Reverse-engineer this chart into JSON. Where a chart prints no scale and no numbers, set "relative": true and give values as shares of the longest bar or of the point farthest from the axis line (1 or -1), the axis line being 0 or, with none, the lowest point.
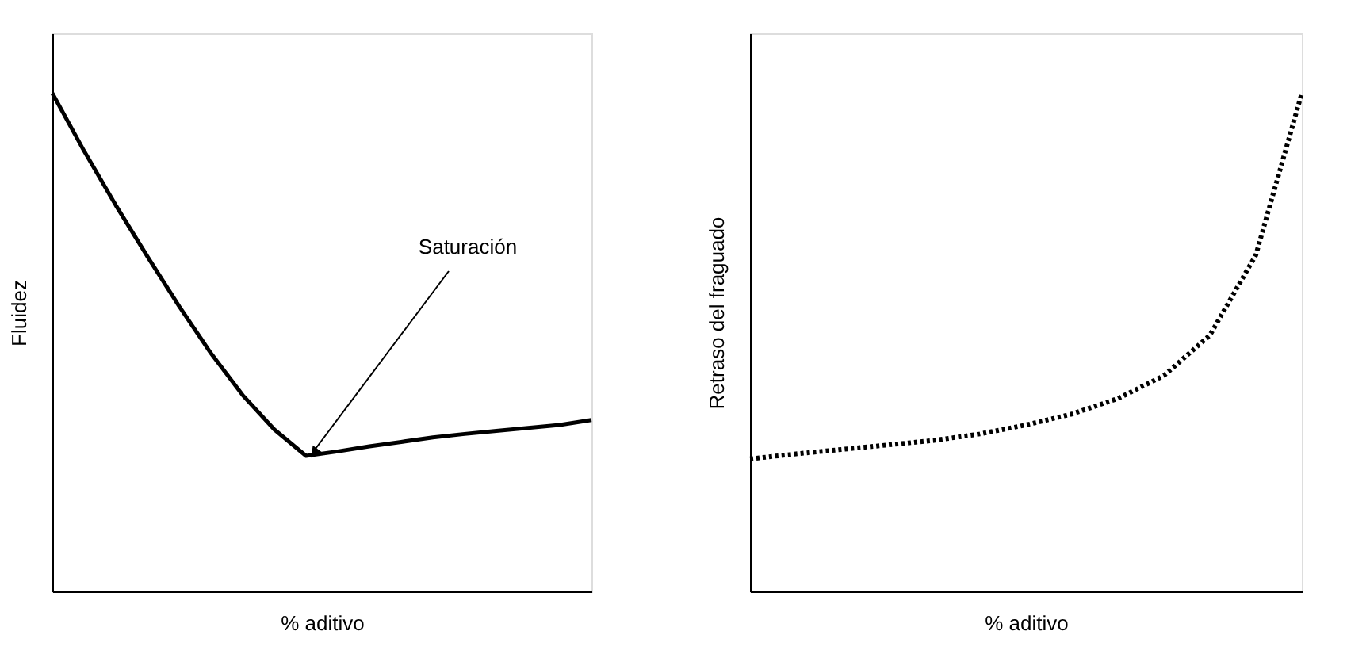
{
  "chart_data": [
    {
      "type": "line",
      "relative": true,
      "xlabel": "% aditivo",
      "ylabel": "Fluidez",
      "categories": [
        null,
        null,
        null,
        null,
        null,
        null,
        null,
        null,
        null,
        null,
        null,
        null,
        null,
        null,
        null,
        null,
        null,
        null
      ],
      "series": [
        {
          "color": "#000000",
          "line_style": "solid",
          "values": [
            1,
            0.884,
            0.775,
            0.672,
            0.572,
            0.478,
            0.394,
            0.325,
            0.272,
            0.281,
            0.291,
            0.3,
            0.309,
            0.316,
            0.322,
            0.328,
            0.334,
            0.344
          ]
        }
      ],
      "annotations": [
        "Saturación"
      ],
      "tick_labels": false,
      "grid": false,
      "marker": "none"
    },
    {
      "type": "line",
      "relative": true,
      "xlabel": "% aditivo",
      "ylabel": "Retraso del fraguado",
      "categories": [
        null,
        null,
        null,
        null,
        null,
        null,
        null,
        null,
        null,
        null,
        null,
        null,
        null
      ],
      "series": [
        {
          "color": "#000000",
          "line_style": "dotted",
          "values": [
            0.266,
            0.276,
            0.285,
            0.294,
            0.303,
            0.316,
            0.334,
            0.356,
            0.387,
            0.433,
            0.514,
            0.675,
            1
          ]
        }
      ],
      "tick_labels": false,
      "grid": false,
      "marker": "none"
    }
  ]
}
